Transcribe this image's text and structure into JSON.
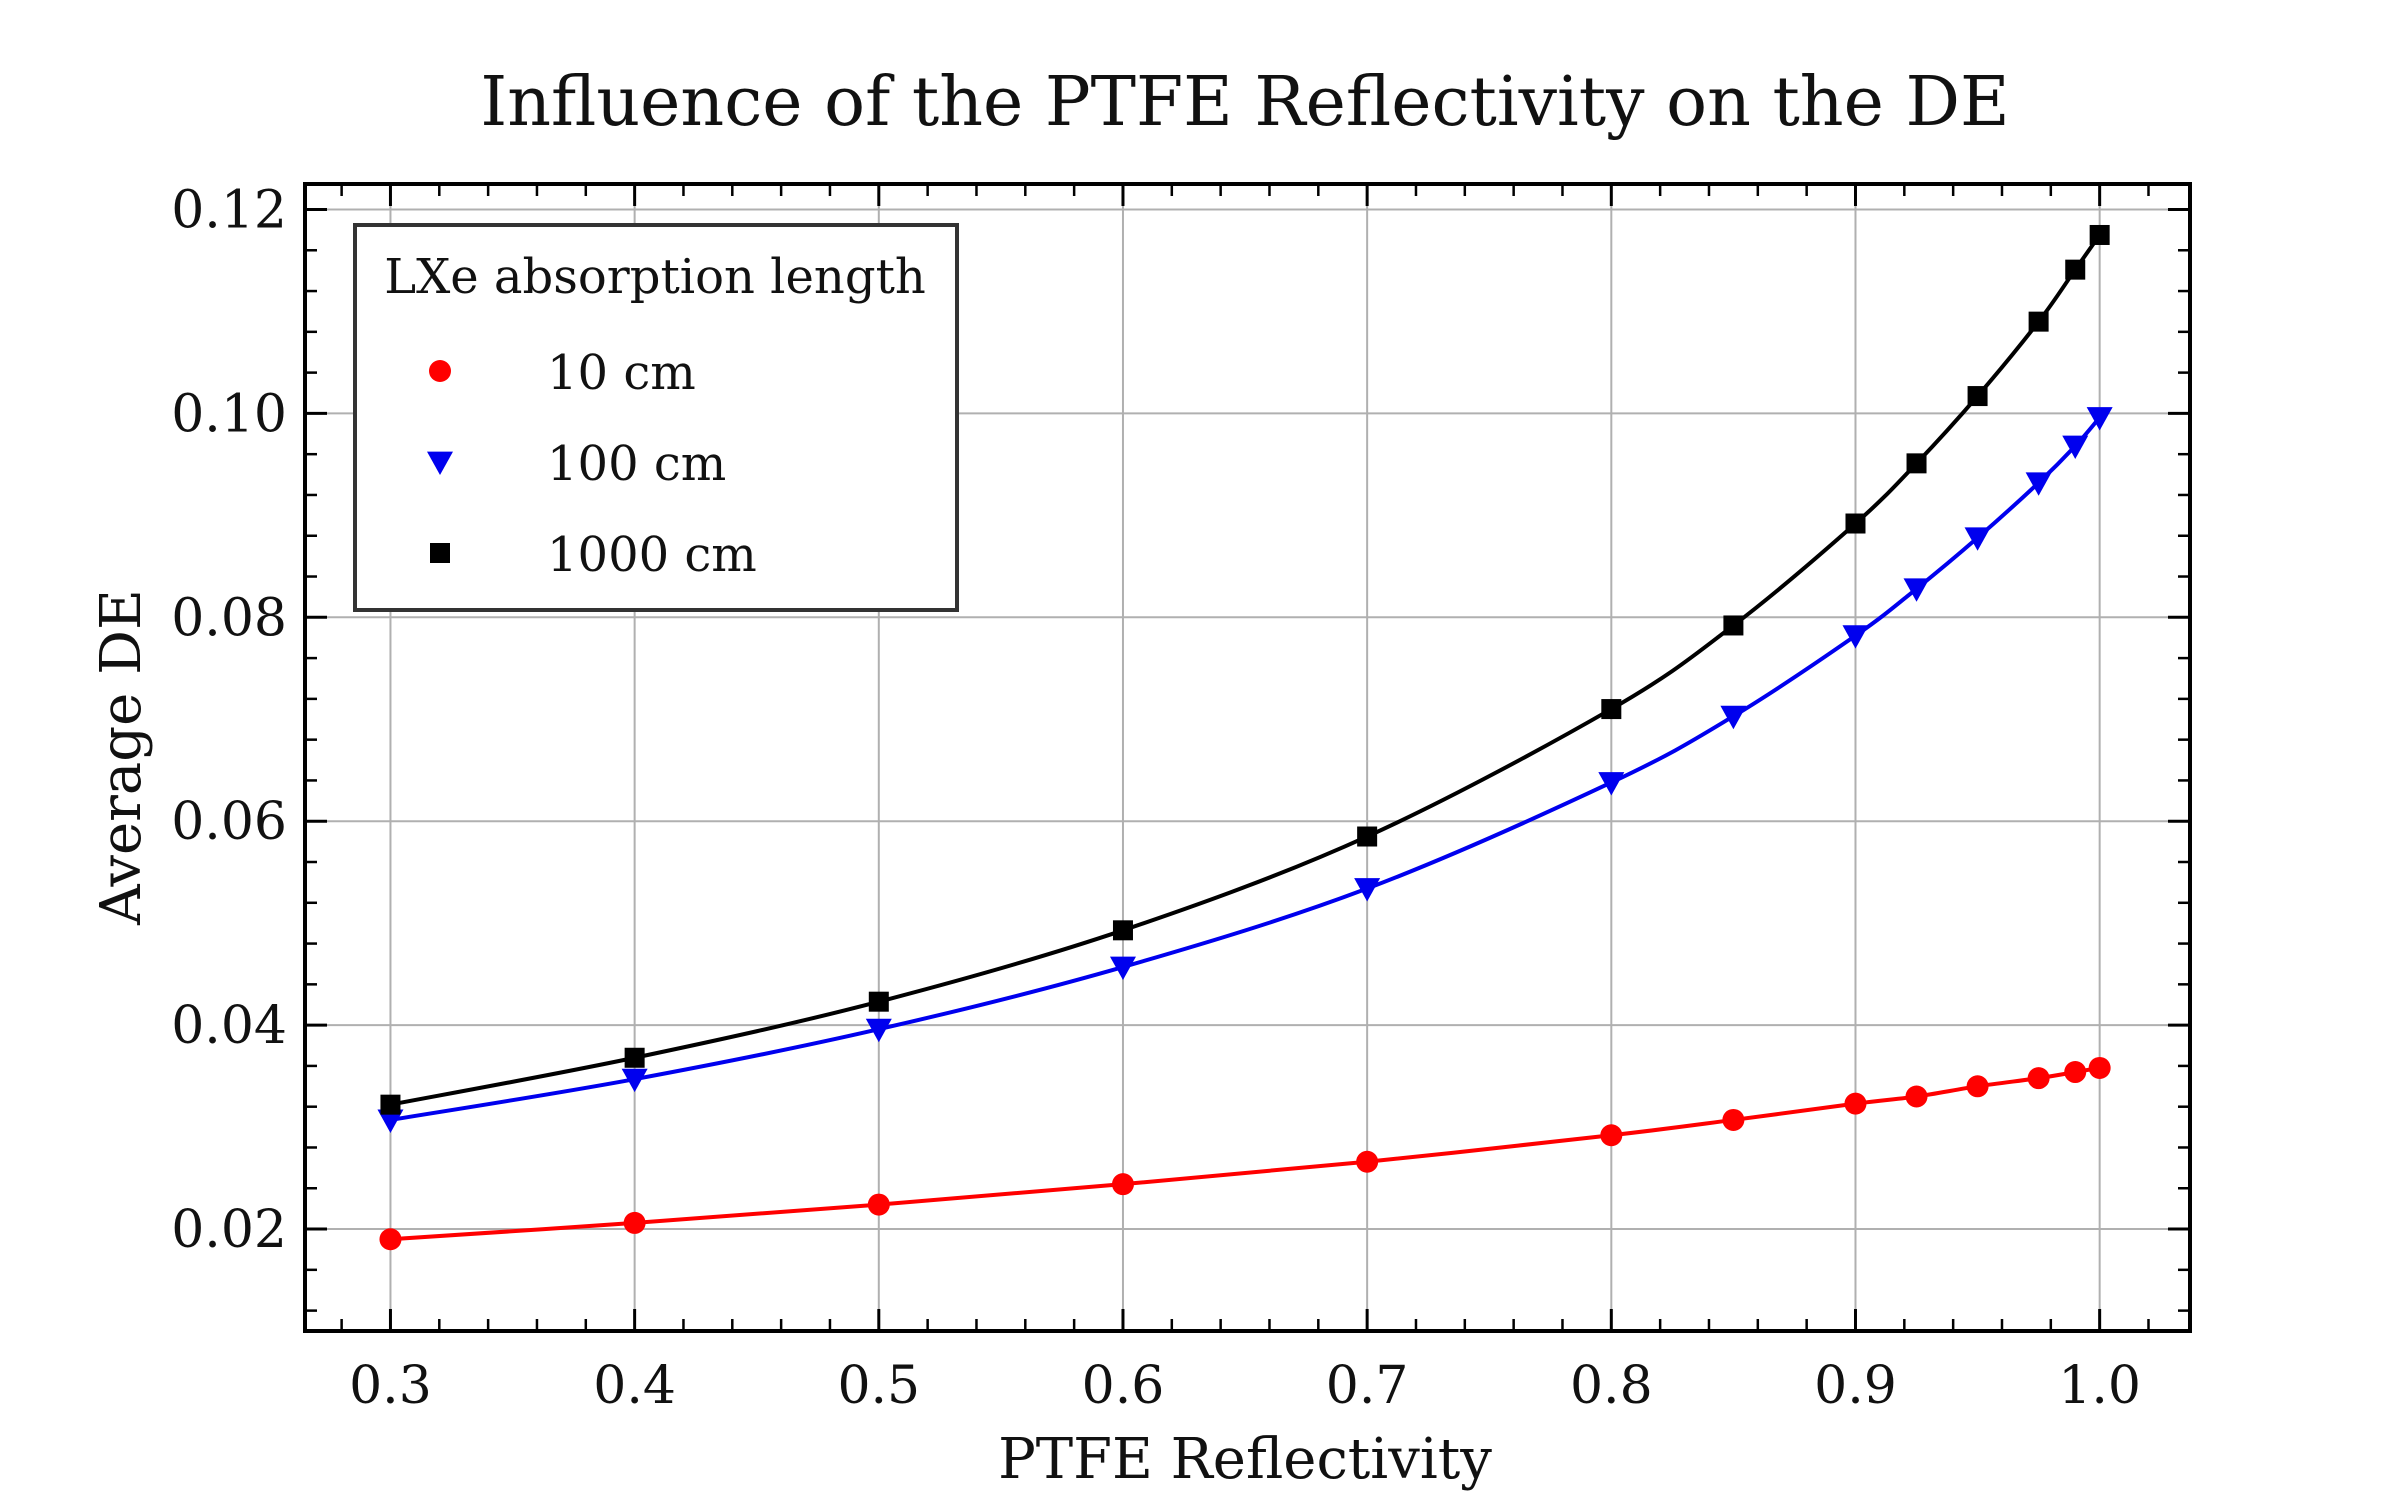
{
  "chart_data": {
    "type": "line",
    "title": "Influence of the PTFE Reflectivity on the DE",
    "xlabel": "PTFE Reflectivity",
    "ylabel": "Average DE",
    "xlim": [
      0.265,
      1.037
    ],
    "ylim": [
      0.01,
      0.1225
    ],
    "xticks": [
      0.3,
      0.4,
      0.5,
      0.6,
      0.7,
      0.8,
      0.9,
      1.0
    ],
    "xtick_labels": [
      "0.3",
      "0.4",
      "0.5",
      "0.6",
      "0.7",
      "0.8",
      "0.9",
      "1.0"
    ],
    "yticks": [
      0.02,
      0.04,
      0.06,
      0.08,
      0.1,
      0.12
    ],
    "ytick_labels": [
      "0.02",
      "0.04",
      "0.06",
      "0.08",
      "0.10",
      "0.12"
    ],
    "grid": true,
    "legend": {
      "title": "LXe absorption length",
      "placement": "top-left"
    },
    "series": [
      {
        "name": "10 cm",
        "color": "#ff0000",
        "marker": "circle",
        "x": [
          0.3,
          0.4,
          0.5,
          0.6,
          0.7,
          0.8,
          0.85,
          0.9,
          0.925,
          0.95,
          0.975,
          0.99,
          1.0
        ],
        "y": [
          0.019,
          0.0206,
          0.0224,
          0.0244,
          0.0266,
          0.0292,
          0.0307,
          0.0323,
          0.033,
          0.034,
          0.0348,
          0.0354,
          0.0358
        ]
      },
      {
        "name": "100 cm",
        "color": "#0000ee",
        "marker": "triangle-down",
        "x": [
          0.3,
          0.4,
          0.5,
          0.6,
          0.7,
          0.8,
          0.85,
          0.9,
          0.925,
          0.95,
          0.975,
          0.99,
          1.0
        ],
        "y": [
          0.0307,
          0.0347,
          0.0396,
          0.0457,
          0.0534,
          0.0638,
          0.0703,
          0.0782,
          0.0828,
          0.0878,
          0.0932,
          0.0968,
          0.0996
        ]
      },
      {
        "name": "1000 cm",
        "color": "#000000",
        "marker": "square",
        "x": [
          0.3,
          0.4,
          0.5,
          0.6,
          0.7,
          0.8,
          0.85,
          0.9,
          0.925,
          0.95,
          0.975,
          0.99,
          1.0
        ],
        "y": [
          0.0322,
          0.0368,
          0.0423,
          0.0493,
          0.0585,
          0.071,
          0.0792,
          0.0892,
          0.0951,
          0.1017,
          0.109,
          0.1141,
          0.1175
        ]
      }
    ]
  }
}
